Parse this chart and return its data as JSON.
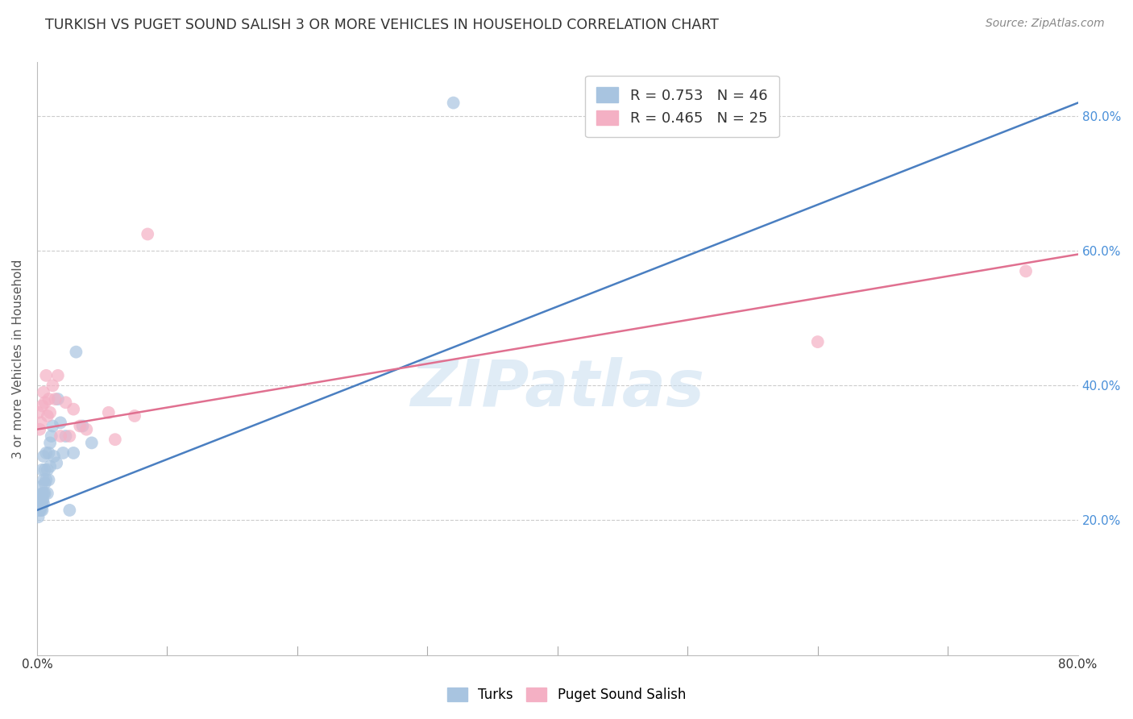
{
  "title": "TURKISH VS PUGET SOUND SALISH 3 OR MORE VEHICLES IN HOUSEHOLD CORRELATION CHART",
  "source": "Source: ZipAtlas.com",
  "ylabel": "3 or more Vehicles in Household",
  "xlim": [
    0.0,
    0.8
  ],
  "ylim": [
    0.0,
    0.88
  ],
  "xtick_vals": [
    0.0,
    0.8
  ],
  "xtick_labels": [
    "0.0%",
    "80.0%"
  ],
  "ytick_vals": [
    0.2,
    0.4,
    0.6,
    0.8
  ],
  "ytick_labels": [
    "20.0%",
    "40.0%",
    "60.0%",
    "80.0%"
  ],
  "watermark": "ZIPatlas",
  "blue_color": "#a8c4e0",
  "pink_color": "#f4b0c4",
  "blue_line_color": "#4a7fc1",
  "pink_line_color": "#e07090",
  "legend_blue_label": "R = 0.753   N = 46",
  "legend_pink_label": "R = 0.465   N = 25",
  "turks_x": [
    0.0005,
    0.001,
    0.001,
    0.0015,
    0.002,
    0.002,
    0.002,
    0.003,
    0.003,
    0.003,
    0.003,
    0.0035,
    0.004,
    0.004,
    0.004,
    0.004,
    0.0045,
    0.005,
    0.005,
    0.005,
    0.005,
    0.006,
    0.006,
    0.006,
    0.007,
    0.007,
    0.008,
    0.008,
    0.009,
    0.009,
    0.01,
    0.01,
    0.011,
    0.012,
    0.013,
    0.015,
    0.016,
    0.018,
    0.02,
    0.022,
    0.025,
    0.028,
    0.03,
    0.035,
    0.042,
    0.32
  ],
  "turks_y": [
    0.215,
    0.205,
    0.235,
    0.215,
    0.215,
    0.225,
    0.235,
    0.215,
    0.22,
    0.23,
    0.25,
    0.225,
    0.215,
    0.225,
    0.24,
    0.275,
    0.23,
    0.225,
    0.24,
    0.26,
    0.295,
    0.24,
    0.255,
    0.275,
    0.26,
    0.3,
    0.24,
    0.275,
    0.26,
    0.3,
    0.28,
    0.315,
    0.325,
    0.34,
    0.295,
    0.285,
    0.38,
    0.345,
    0.3,
    0.325,
    0.215,
    0.3,
    0.45,
    0.34,
    0.315,
    0.82
  ],
  "salish_x": [
    0.001,
    0.002,
    0.003,
    0.004,
    0.005,
    0.006,
    0.007,
    0.008,
    0.009,
    0.01,
    0.012,
    0.014,
    0.016,
    0.018,
    0.022,
    0.025,
    0.028,
    0.033,
    0.038,
    0.055,
    0.06,
    0.075,
    0.085,
    0.6,
    0.76
  ],
  "salish_y": [
    0.36,
    0.335,
    0.345,
    0.37,
    0.39,
    0.375,
    0.415,
    0.355,
    0.38,
    0.36,
    0.4,
    0.38,
    0.415,
    0.325,
    0.375,
    0.325,
    0.365,
    0.34,
    0.335,
    0.36,
    0.32,
    0.355,
    0.625,
    0.465,
    0.57
  ],
  "blue_line_x": [
    0.0,
    0.8
  ],
  "blue_line_y": [
    0.215,
    0.82
  ],
  "pink_line_x": [
    0.0,
    0.8
  ],
  "pink_line_y": [
    0.335,
    0.595
  ]
}
